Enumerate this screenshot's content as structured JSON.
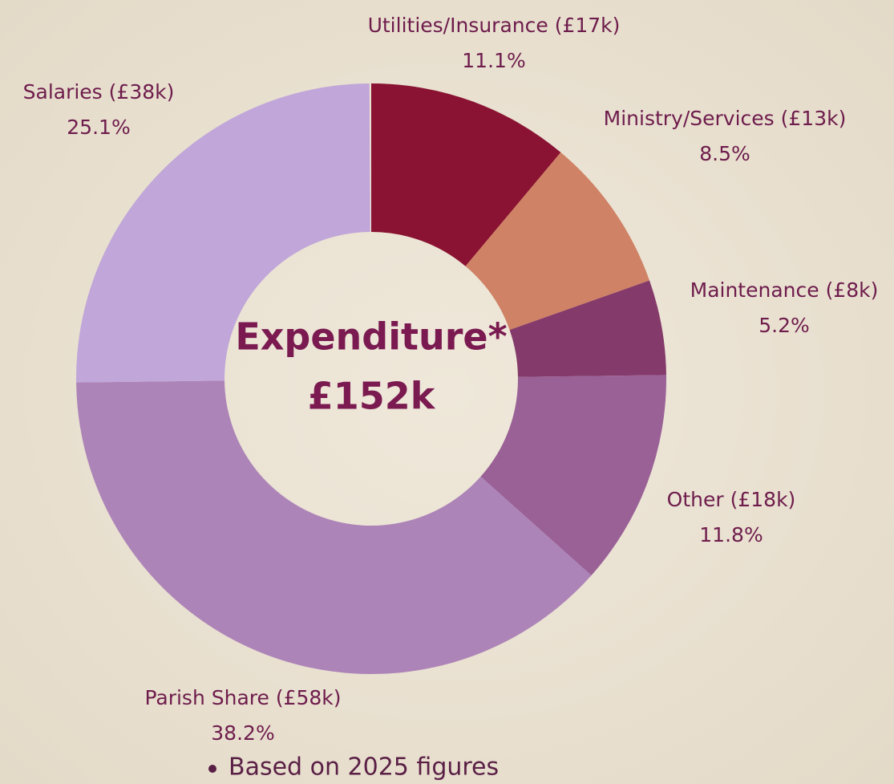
{
  "chart_data": {
    "type": "donut",
    "title": "Expenditure*",
    "total_label": "£152k",
    "categories": [
      "Utilities/Insurance (£17k)",
      "Ministry/Services (£13k)",
      "Maintenance (£8k)",
      "Other (£18k)",
      "Parish Share (£58k)",
      "Salaries (£38k)"
    ],
    "values": [
      11.1,
      8.5,
      5.2,
      11.8,
      38.2,
      25.1
    ],
    "value_labels": [
      "11.1%",
      "8.5%",
      "5.2%",
      "11.8%",
      "38.2%",
      "25.1%"
    ],
    "colors": [
      "#8a1232",
      "#cf8265",
      "#843a6b",
      "#9a6197",
      "#ad84b8",
      "#c0a6d9"
    ],
    "note": "Based on 2025 figures"
  }
}
